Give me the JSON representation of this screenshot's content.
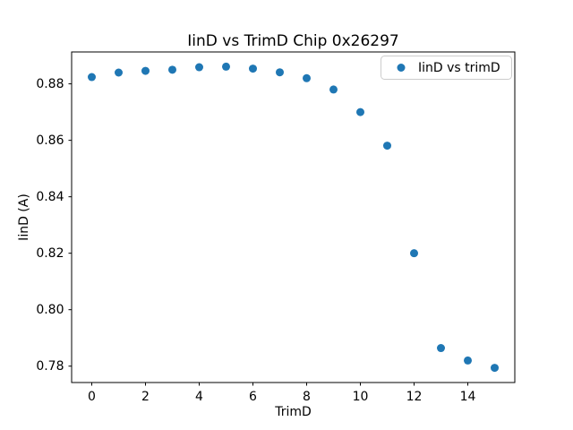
{
  "window": {
    "background": "#ffffff"
  },
  "chart_data": {
    "type": "scatter",
    "title": "IinD vs TrimD Chip 0x26297",
    "xlabel": "TrimD",
    "ylabel": "IinD (A)",
    "legend_position": "upper right",
    "legend_entries": [
      "IinD vs trimD"
    ],
    "grid": false,
    "background": "#ffffff",
    "axis_color": "#000000",
    "series": [
      {
        "name": "IinD vs trimD",
        "color": "#1f77b4",
        "marker": "circle",
        "x": [
          0,
          1,
          2,
          3,
          4,
          5,
          6,
          7,
          8,
          9,
          10,
          11,
          12,
          13,
          14,
          15
        ],
        "y": [
          0.8824,
          0.884,
          0.8846,
          0.885,
          0.8859,
          0.8861,
          0.8854,
          0.8841,
          0.882,
          0.878,
          0.87,
          0.8581,
          0.82,
          0.7864,
          0.782,
          0.7794
        ]
      }
    ],
    "xlim": [
      -0.75,
      15.75
    ],
    "ylim": [
      0.7742,
      0.8913
    ],
    "xticks": [
      0,
      2,
      4,
      6,
      8,
      10,
      12,
      14
    ],
    "yticks": [
      0.78,
      0.8,
      0.82,
      0.84,
      0.86,
      0.88
    ]
  }
}
